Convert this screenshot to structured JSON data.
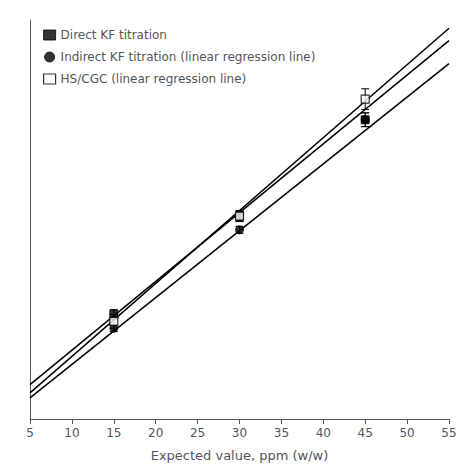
{
  "chart_data": {
    "type": "scatter",
    "title": "",
    "xlabel": "Expected value, ppm (w/w)",
    "xlim": [
      5,
      55
    ],
    "xticks": [
      5,
      10,
      15,
      20,
      25,
      30,
      35,
      40,
      45,
      50,
      55
    ],
    "ylim": [
      0,
      58
    ],
    "tick_labels": "x",
    "grid": false,
    "legend": "upper left",
    "series": [
      {
        "name": "Direct KF titration",
        "color": "#000000",
        "marker": "square",
        "line_style": "solid",
        "x": [
          15,
          30,
          45
        ],
        "values": [
          15.2,
          29.5,
          43.5
        ],
        "yerr": [
          0.7,
          0.7,
          1.0
        ],
        "line": {
          "x": [
            5,
            55
          ],
          "y": [
            5,
            55
          ]
        }
      },
      {
        "name": "Indirect KF titration (linear regression line)",
        "color": "#000000",
        "marker": "circle",
        "line_style": "solid",
        "x": [
          15,
          30,
          45
        ],
        "values": [
          13.2,
          27.5,
          43.5
        ],
        "yerr": [
          0.5,
          0.5,
          1.0
        ],
        "line": {
          "x": [
            5,
            55
          ],
          "y": [
            3.06,
            51.66
          ]
        }
      },
      {
        "name": "HS/CGC (linear regression line)",
        "color": "#000000",
        "marker": "open-square",
        "line_style": "solid",
        "x": [
          15,
          30,
          45
        ],
        "values": [
          14.2,
          29.5,
          46.5
        ],
        "yerr": [
          1.0,
          0.8,
          1.5
        ],
        "line": {
          "x": [
            5,
            55
          ],
          "y": [
            3.8,
            56.8
          ]
        }
      }
    ]
  }
}
